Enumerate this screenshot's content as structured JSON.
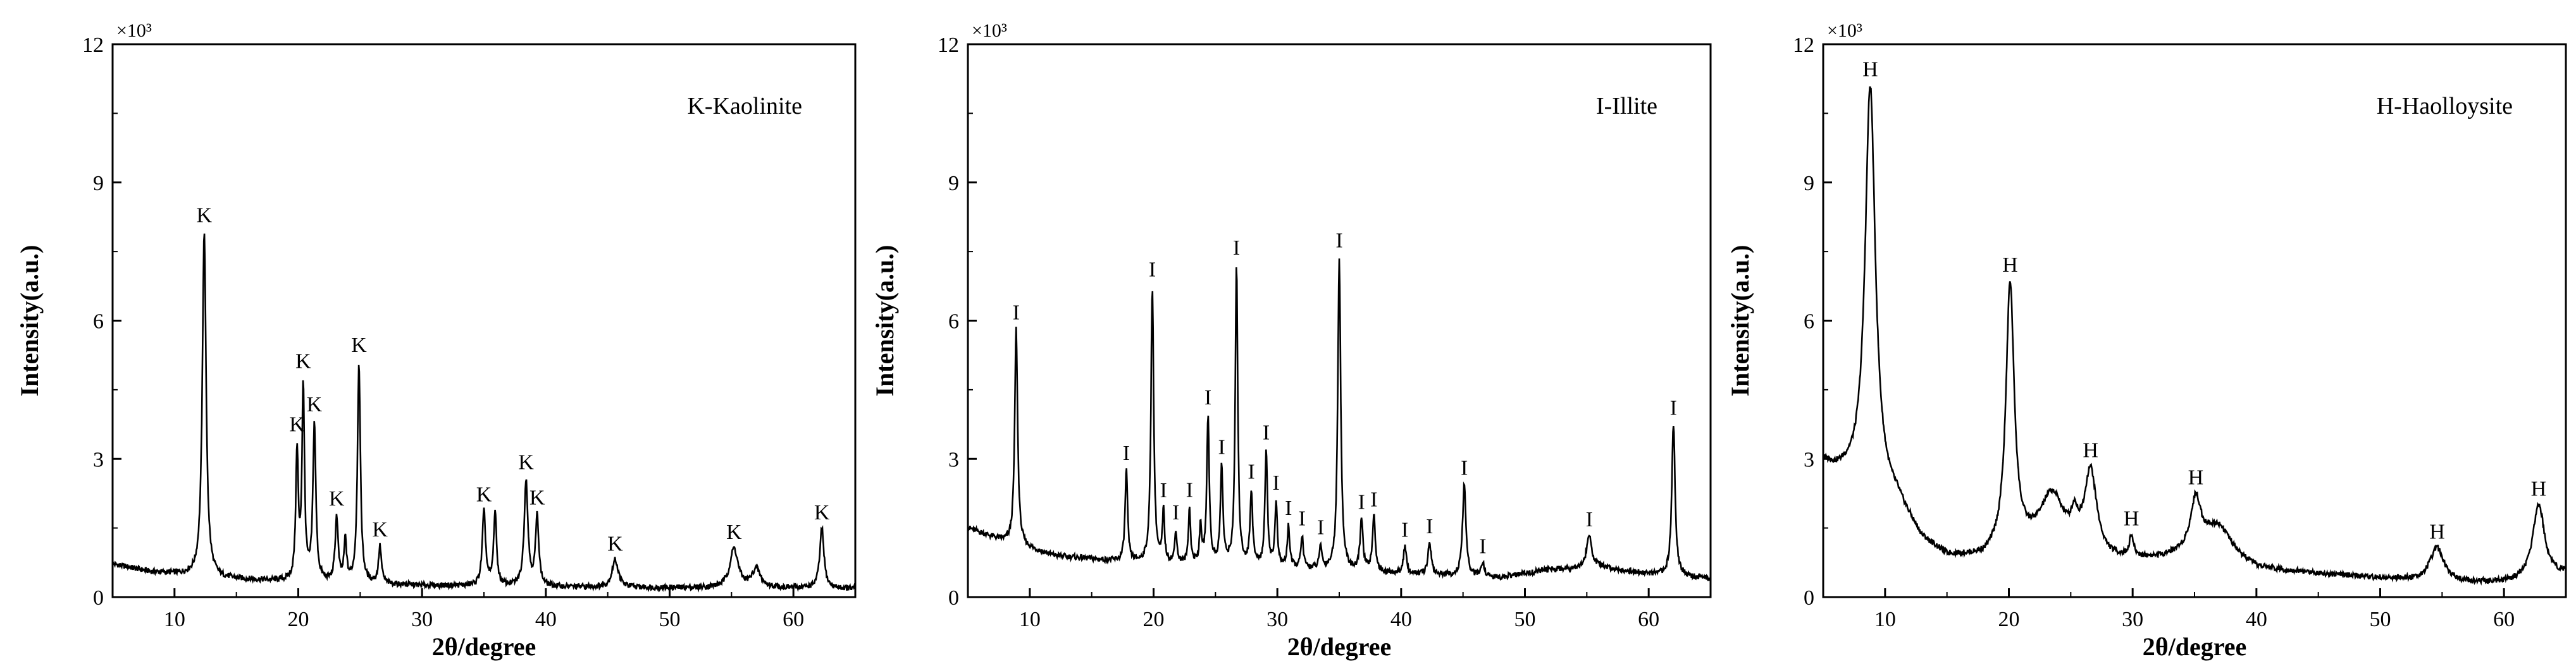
{
  "chart_data": [
    {
      "type": "line",
      "xlabel": "2θ/degree",
      "ylabel": "Intensity(a.u.)",
      "ymultiplier": "×10³",
      "annotation": "K-Kaolinite",
      "xlim": [
        5,
        65
      ],
      "ylim": [
        0,
        12
      ],
      "xticks": [
        10,
        20,
        30,
        40,
        50,
        60
      ],
      "yticks": [
        0,
        3,
        6,
        9,
        12
      ],
      "baseline": [
        [
          5,
          0.72
        ],
        [
          8,
          0.55
        ],
        [
          11,
          0.48
        ],
        [
          14,
          0.4
        ],
        [
          18,
          0.35
        ],
        [
          24,
          0.3
        ],
        [
          30,
          0.25
        ],
        [
          40,
          0.22
        ],
        [
          50,
          0.2
        ],
        [
          60,
          0.2
        ],
        [
          65,
          0.18
        ]
      ],
      "peaks": [
        {
          "x": 12.4,
          "y": 7.5,
          "w": 0.18,
          "label": "K"
        },
        {
          "x": 19.9,
          "y": 2.8,
          "w": 0.12,
          "label": "K"
        },
        {
          "x": 20.4,
          "y": 4.2,
          "w": 0.12,
          "label": "K"
        },
        {
          "x": 21.3,
          "y": 3.4,
          "w": 0.14,
          "label": "K"
        },
        {
          "x": 23.1,
          "y": 1.4,
          "w": 0.14,
          "label": "K"
        },
        {
          "x": 23.8,
          "y": 0.9,
          "w": 0.12,
          "label": ""
        },
        {
          "x": 24.9,
          "y": 4.8,
          "w": 0.14,
          "label": "K"
        },
        {
          "x": 26.6,
          "y": 0.8,
          "w": 0.14,
          "label": "K"
        },
        {
          "x": 35.0,
          "y": 1.6,
          "w": 0.16,
          "label": "K"
        },
        {
          "x": 35.9,
          "y": 1.6,
          "w": 0.14,
          "label": ""
        },
        {
          "x": 38.4,
          "y": 2.3,
          "w": 0.18,
          "label": "K"
        },
        {
          "x": 39.3,
          "y": 1.5,
          "w": 0.16,
          "label": "K"
        },
        {
          "x": 45.6,
          "y": 0.6,
          "w": 0.3,
          "label": "K"
        },
        {
          "x": 55.2,
          "y": 0.85,
          "w": 0.4,
          "label": "K"
        },
        {
          "x": 57.0,
          "y": 0.4,
          "w": 0.4,
          "label": ""
        },
        {
          "x": 62.3,
          "y": 1.3,
          "w": 0.2,
          "label": "K"
        }
      ]
    },
    {
      "type": "line",
      "xlabel": "2θ/degree",
      "ylabel": "Intensity(a.u.)",
      "ymultiplier": "×10³",
      "annotation": "I-Illite",
      "xlim": [
        5,
        65
      ],
      "ylim": [
        0,
        12
      ],
      "xticks": [
        10,
        20,
        30,
        40,
        50,
        60
      ],
      "yticks": [
        0,
        3,
        6,
        9,
        12
      ],
      "baseline": [
        [
          5,
          1.5
        ],
        [
          8,
          1.2
        ],
        [
          12,
          0.9
        ],
        [
          18,
          0.75
        ],
        [
          25,
          0.7
        ],
        [
          32,
          0.62
        ],
        [
          40,
          0.5
        ],
        [
          48,
          0.42
        ],
        [
          52,
          0.6
        ],
        [
          56,
          0.65
        ],
        [
          60,
          0.5
        ],
        [
          65,
          0.4
        ]
      ],
      "peaks": [
        {
          "x": 8.9,
          "y": 4.7,
          "w": 0.14,
          "label": "I"
        },
        {
          "x": 17.8,
          "y": 2.0,
          "w": 0.12,
          "label": "I"
        },
        {
          "x": 19.9,
          "y": 6.0,
          "w": 0.13,
          "label": "I"
        },
        {
          "x": 20.8,
          "y": 1.1,
          "w": 0.1,
          "label": "I"
        },
        {
          "x": 21.8,
          "y": 0.7,
          "w": 0.1,
          "label": "I"
        },
        {
          "x": 22.9,
          "y": 1.2,
          "w": 0.1,
          "label": "I"
        },
        {
          "x": 23.8,
          "y": 0.8,
          "w": 0.1,
          "label": ""
        },
        {
          "x": 24.4,
          "y": 3.2,
          "w": 0.12,
          "label": "I"
        },
        {
          "x": 25.5,
          "y": 2.1,
          "w": 0.12,
          "label": "I"
        },
        {
          "x": 26.7,
          "y": 6.5,
          "w": 0.12,
          "label": "I"
        },
        {
          "x": 27.9,
          "y": 1.6,
          "w": 0.12,
          "label": "I"
        },
        {
          "x": 29.1,
          "y": 2.5,
          "w": 0.12,
          "label": "I"
        },
        {
          "x": 29.9,
          "y": 1.4,
          "w": 0.11,
          "label": "I"
        },
        {
          "x": 30.9,
          "y": 0.9,
          "w": 0.11,
          "label": "I"
        },
        {
          "x": 32.0,
          "y": 0.7,
          "w": 0.11,
          "label": "I"
        },
        {
          "x": 33.5,
          "y": 0.5,
          "w": 0.11,
          "label": "I"
        },
        {
          "x": 35.0,
          "y": 6.8,
          "w": 0.14,
          "label": "I"
        },
        {
          "x": 36.8,
          "y": 1.1,
          "w": 0.14,
          "label": "I"
        },
        {
          "x": 37.8,
          "y": 1.2,
          "w": 0.14,
          "label": "I"
        },
        {
          "x": 40.3,
          "y": 0.6,
          "w": 0.14,
          "label": "I"
        },
        {
          "x": 42.3,
          "y": 0.7,
          "w": 0.16,
          "label": "I"
        },
        {
          "x": 45.1,
          "y": 2.0,
          "w": 0.16,
          "label": "I"
        },
        {
          "x": 46.6,
          "y": 0.3,
          "w": 0.16,
          "label": "I"
        },
        {
          "x": 55.2,
          "y": 0.7,
          "w": 0.25,
          "label": "I"
        },
        {
          "x": 62.0,
          "y": 3.3,
          "w": 0.16,
          "label": "I"
        }
      ]
    },
    {
      "type": "line",
      "xlabel": "2θ/degree",
      "ylabel": "Intensity(a.u.)",
      "ymultiplier": "×10³",
      "annotation": "H-Haolloysite",
      "xlim": [
        5,
        65
      ],
      "ylim": [
        0,
        12
      ],
      "xticks": [
        10,
        20,
        30,
        40,
        50,
        60
      ],
      "yticks": [
        0,
        3,
        6,
        9,
        12
      ],
      "baseline": [
        [
          5,
          2.9
        ],
        [
          6,
          2.7
        ],
        [
          7,
          2.6
        ],
        [
          8,
          2.4
        ],
        [
          11,
          2.0
        ],
        [
          13,
          1.2
        ],
        [
          15,
          0.85
        ],
        [
          18,
          0.8
        ],
        [
          20,
          1.0
        ],
        [
          22,
          1.0
        ],
        [
          25,
          0.9
        ],
        [
          28,
          0.75
        ],
        [
          32,
          0.8
        ],
        [
          36,
          1.0
        ],
        [
          40,
          0.6
        ],
        [
          45,
          0.5
        ],
        [
          50,
          0.4
        ],
        [
          55,
          0.3
        ],
        [
          60,
          0.3
        ],
        [
          63,
          0.3
        ],
        [
          65,
          0.5
        ]
      ],
      "peaks": [
        {
          "x": 8.8,
          "y": 8.8,
          "w": 0.5,
          "label": "H"
        },
        {
          "x": 20.1,
          "y": 5.7,
          "w": 0.4,
          "label": "H"
        },
        {
          "x": 23.5,
          "y": 1.2,
          "w": 1.2,
          "label": ""
        },
        {
          "x": 25.3,
          "y": 0.5,
          "w": 0.3,
          "label": ""
        },
        {
          "x": 26.6,
          "y": 1.8,
          "w": 0.6,
          "label": "H"
        },
        {
          "x": 29.9,
          "y": 0.45,
          "w": 0.2,
          "label": "H"
        },
        {
          "x": 35.1,
          "y": 1.1,
          "w": 0.5,
          "label": "H"
        },
        {
          "x": 37.0,
          "y": 0.6,
          "w": 1.2,
          "label": ""
        },
        {
          "x": 54.6,
          "y": 0.75,
          "w": 0.7,
          "label": "H"
        },
        {
          "x": 62.8,
          "y": 1.7,
          "w": 0.6,
          "label": "H"
        }
      ]
    }
  ]
}
